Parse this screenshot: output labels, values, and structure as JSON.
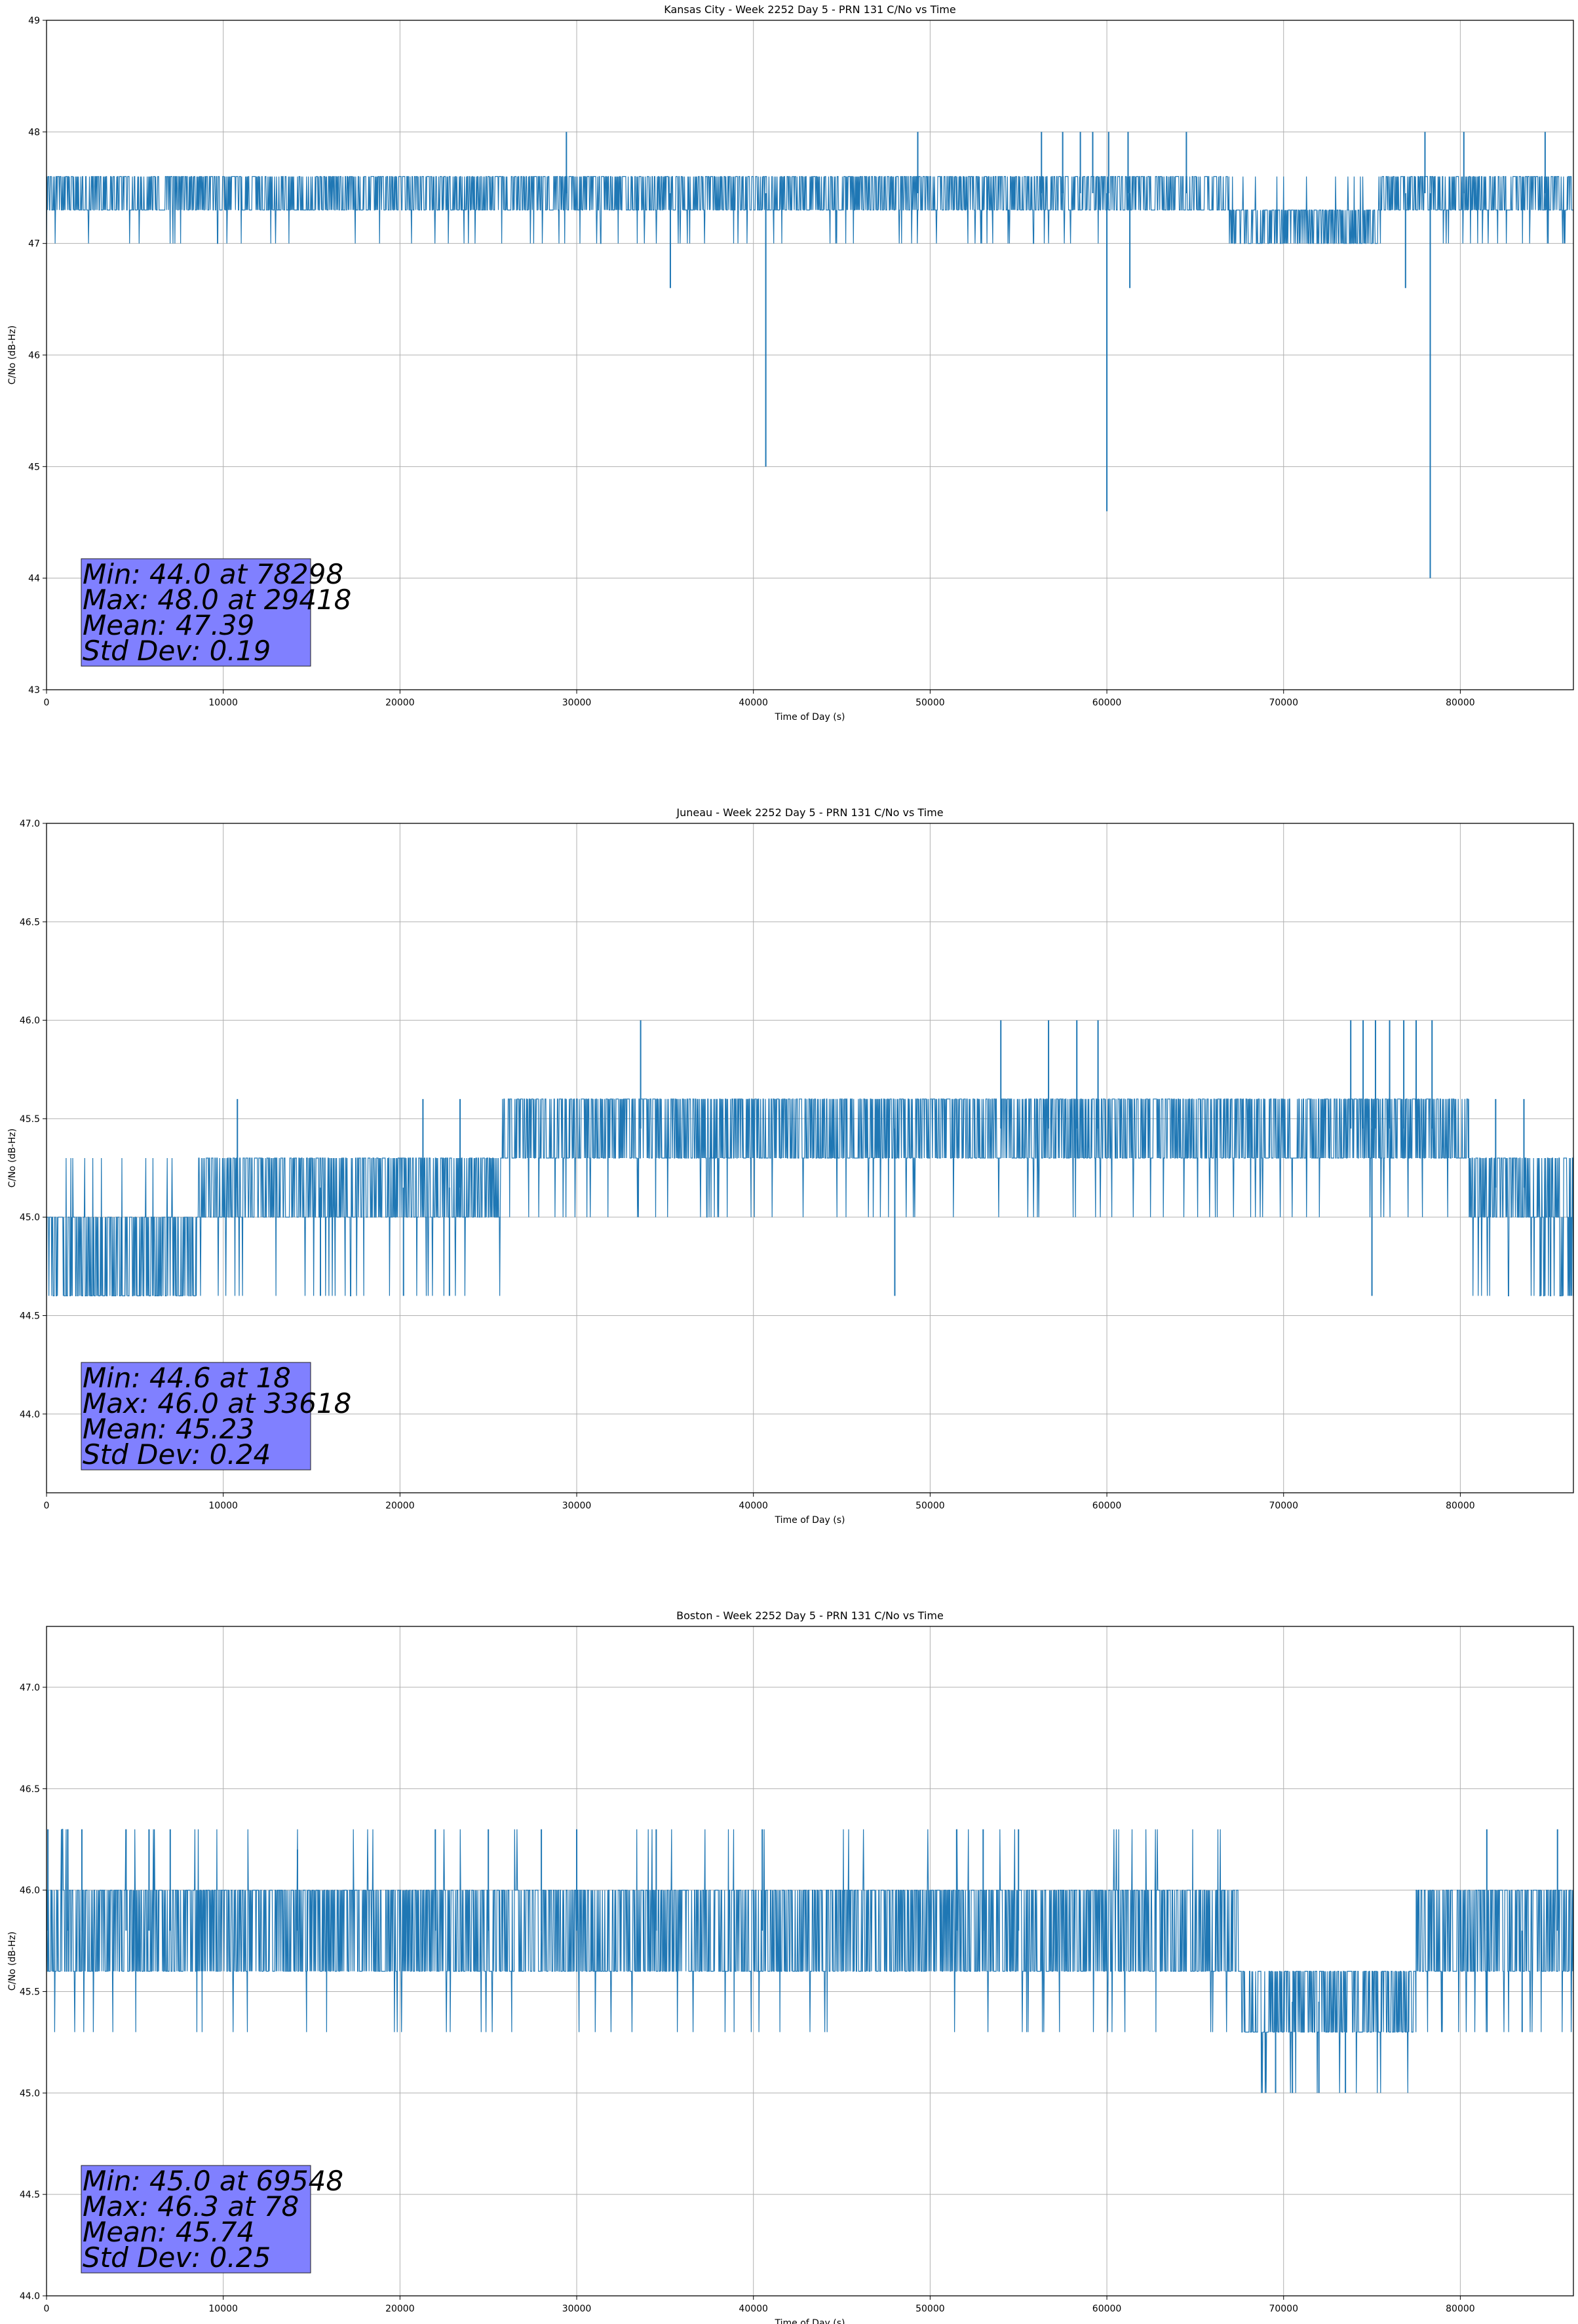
{
  "chart_data": [
    {
      "type": "line",
      "title": "Kansas City - Week 2252 Day 5 - PRN 131 C/No vs Time",
      "xlabel": "Time of Day (s)",
      "ylabel": "C/No (dB-Hz)",
      "xlim": [
        0,
        86400
      ],
      "ylim": [
        43,
        49
      ],
      "xticks": [
        0,
        10000,
        20000,
        30000,
        40000,
        50000,
        60000,
        70000,
        80000
      ],
      "yticks": [
        43,
        44,
        45,
        46,
        47,
        48,
        49
      ],
      "ytick_decimals": 0,
      "grid": true,
      "line_color": "#1f77b4",
      "levels_by_segment": [
        {
          "x": [
            0,
            67000
          ],
          "levels": [
            47.3,
            47.6
          ],
          "dips": [
            47.0
          ]
        },
        {
          "x": [
            67000,
            75500
          ],
          "levels": [
            47.0,
            47.3
          ],
          "dips": [
            47.6
          ]
        },
        {
          "x": [
            75500,
            86400
          ],
          "levels": [
            47.3,
            47.6
          ],
          "dips": [
            47.0
          ]
        }
      ],
      "spikes": [
        {
          "x": 29418,
          "y": 48.0
        },
        {
          "x": 49300,
          "y": 48.0
        },
        {
          "x": 56300,
          "y": 48.0
        },
        {
          "x": 57500,
          "y": 48.0
        },
        {
          "x": 58500,
          "y": 48.0
        },
        {
          "x": 59200,
          "y": 48.0
        },
        {
          "x": 60100,
          "y": 48.0
        },
        {
          "x": 61200,
          "y": 48.0
        },
        {
          "x": 64500,
          "y": 48.0
        },
        {
          "x": 78000,
          "y": 48.0
        },
        {
          "x": 80200,
          "y": 48.0
        },
        {
          "x": 84800,
          "y": 48.0
        },
        {
          "x": 35300,
          "y": 46.6
        },
        {
          "x": 40700,
          "y": 45.0
        },
        {
          "x": 60000,
          "y": 44.6
        },
        {
          "x": 61300,
          "y": 46.6
        },
        {
          "x": 76900,
          "y": 46.6
        },
        {
          "x": 78298,
          "y": 44.0
        }
      ],
      "stats": {
        "min": "Min: 44.0 at 78298",
        "max": "Max: 48.0 at 29418",
        "mean": "Mean: 47.39",
        "std": "Std Dev: 0.19"
      }
    },
    {
      "type": "line",
      "title": "Juneau - Week 2252 Day 5 - PRN 131 C/No vs Time",
      "xlabel": "Time of Day (s)",
      "ylabel": "C/No (dB-Hz)",
      "xlim": [
        0,
        86400
      ],
      "ylim": [
        43.6,
        47.0
      ],
      "xticks": [
        0,
        10000,
        20000,
        30000,
        40000,
        50000,
        60000,
        70000,
        80000
      ],
      "yticks": [
        44.0,
        44.5,
        45.0,
        45.5,
        46.0,
        46.5,
        47.0
      ],
      "ytick_decimals": 1,
      "grid": true,
      "line_color": "#1f77b4",
      "levels_by_segment": [
        {
          "x": [
            0,
            8500
          ],
          "levels": [
            44.6,
            45.0
          ],
          "dips": [
            45.3
          ]
        },
        {
          "x": [
            8500,
            25800
          ],
          "levels": [
            45.0,
            45.3
          ],
          "dips": [
            44.6
          ]
        },
        {
          "x": [
            25800,
            80500
          ],
          "levels": [
            45.3,
            45.6
          ],
          "dips": [
            45.0
          ]
        },
        {
          "x": [
            80500,
            84500
          ],
          "levels": [
            45.0,
            45.3
          ],
          "dips": [
            44.6
          ]
        },
        {
          "x": [
            84500,
            86400
          ],
          "levels": [
            44.6,
            45.0,
            45.3
          ],
          "dips": []
        }
      ],
      "spikes": [
        {
          "x": 10800,
          "y": 45.6
        },
        {
          "x": 21300,
          "y": 45.6
        },
        {
          "x": 23400,
          "y": 45.6
        },
        {
          "x": 33618,
          "y": 46.0
        },
        {
          "x": 54000,
          "y": 46.0
        },
        {
          "x": 56700,
          "y": 46.0
        },
        {
          "x": 58300,
          "y": 46.0
        },
        {
          "x": 59500,
          "y": 46.0
        },
        {
          "x": 73800,
          "y": 46.0
        },
        {
          "x": 74500,
          "y": 46.0
        },
        {
          "x": 75200,
          "y": 46.0
        },
        {
          "x": 76000,
          "y": 46.0
        },
        {
          "x": 76800,
          "y": 46.0
        },
        {
          "x": 77500,
          "y": 46.0
        },
        {
          "x": 78400,
          "y": 46.0
        },
        {
          "x": 82000,
          "y": 45.6
        },
        {
          "x": 83600,
          "y": 45.6
        },
        {
          "x": 48000,
          "y": 44.6
        },
        {
          "x": 75000,
          "y": 44.6
        },
        {
          "x": 15500,
          "y": 44.6
        },
        {
          "x": 20200,
          "y": 44.6
        },
        {
          "x": 22800,
          "y": 44.6
        }
      ],
      "stats": {
        "min": "Min: 44.6 at 18",
        "max": "Max: 46.0 at 33618",
        "mean": "Mean: 45.23",
        "std": "Std Dev: 0.24"
      }
    },
    {
      "type": "line",
      "title": "Boston - Week 2252 Day 5 - PRN 131 C/No vs Time",
      "xlabel": "Time of Day (s)",
      "ylabel": "C/No (dB-Hz)",
      "xlim": [
        0,
        86400
      ],
      "ylim": [
        44.0,
        47.3
      ],
      "xticks": [
        0,
        10000,
        20000,
        30000,
        40000,
        50000,
        60000,
        70000,
        80000
      ],
      "yticks": [
        44.0,
        44.5,
        45.0,
        45.5,
        46.0,
        46.5,
        47.0
      ],
      "ytick_decimals": 1,
      "grid": true,
      "line_color": "#1f77b4",
      "levels_by_segment": [
        {
          "x": [
            0,
            67500
          ],
          "levels": [
            45.6,
            46.0
          ],
          "dips": [
            46.3,
            45.3
          ]
        },
        {
          "x": [
            67500,
            77500
          ],
          "levels": [
            45.3,
            45.6
          ],
          "dips": [
            45.0
          ]
        },
        {
          "x": [
            77500,
            86400
          ],
          "levels": [
            45.6,
            46.0
          ],
          "dips": [
            45.3
          ]
        }
      ],
      "spikes": [
        {
          "x": 78,
          "y": 46.3
        },
        {
          "x": 1200,
          "y": 46.3
        },
        {
          "x": 2000,
          "y": 46.3
        },
        {
          "x": 4500,
          "y": 46.3
        },
        {
          "x": 5800,
          "y": 46.3
        },
        {
          "x": 7000,
          "y": 46.3
        },
        {
          "x": 14200,
          "y": 46.2
        },
        {
          "x": 22000,
          "y": 46.3
        },
        {
          "x": 25000,
          "y": 46.3
        },
        {
          "x": 28000,
          "y": 46.3
        },
        {
          "x": 30000,
          "y": 46.3
        },
        {
          "x": 34500,
          "y": 46.3
        },
        {
          "x": 40500,
          "y": 46.3
        },
        {
          "x": 51500,
          "y": 46.3
        },
        {
          "x": 53000,
          "y": 46.3
        },
        {
          "x": 55000,
          "y": 46.3
        },
        {
          "x": 81500,
          "y": 46.3
        },
        {
          "x": 85500,
          "y": 46.3
        },
        {
          "x": 69548,
          "y": 45.0
        },
        {
          "x": 70500,
          "y": 45.0
        },
        {
          "x": 72000,
          "y": 45.0
        },
        {
          "x": 73500,
          "y": 45.0
        },
        {
          "x": 83500,
          "y": 45.3
        }
      ],
      "stats": {
        "min": "Min: 45.0 at 69548",
        "max": "Max: 46.3 at 78",
        "mean": "Mean: 45.74",
        "std": "Std Dev: 0.25"
      }
    }
  ]
}
